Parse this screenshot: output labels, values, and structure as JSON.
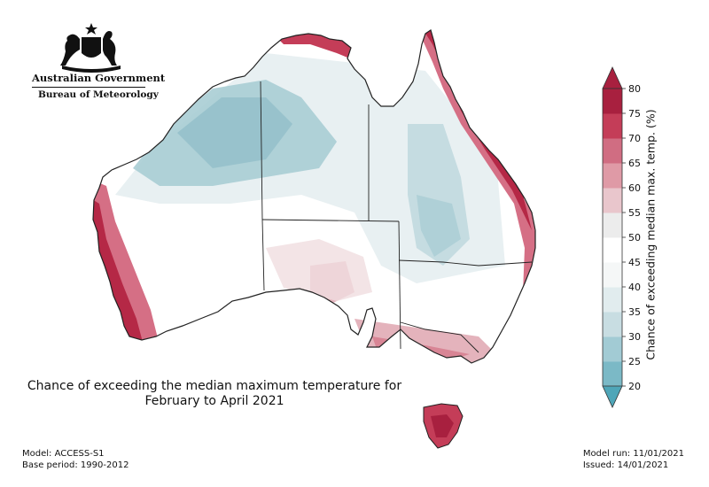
{
  "logo": {
    "icon": "coat-of-arms-icon",
    "org": "Australian Government",
    "department": "Bureau of Meteorology"
  },
  "map": {
    "region": "Australia",
    "title_line1": "Chance of exceeding the median maximum temperature for",
    "title_line2": "February to April 2021",
    "colors": {
      "very_low": "#4fa6b8",
      "low": "#a9cdd4",
      "slightly_low": "#dbe8ec",
      "neutral": "#ffffff",
      "slightly_high": "#ebd3d7",
      "high": "#df9aa6",
      "very_high": "#c43d58",
      "extreme": "#a8203f"
    }
  },
  "colorbar": {
    "label": "Chance of exceeding median max. temp. (%)",
    "ticks": [
      "80",
      "75",
      "70",
      "65",
      "60",
      "55",
      "50",
      "45",
      "40",
      "35",
      "30",
      "25",
      "20"
    ],
    "colors": [
      "#4fa6b8",
      "#7bb9c6",
      "#a2cbd4",
      "#c8dde2",
      "#e1ecee",
      "#f5f7f7",
      "#ffffff",
      "#ececec",
      "#e9c6cc",
      "#df9aa6",
      "#d06d82",
      "#c43d58",
      "#a8203f"
    ]
  },
  "footer": {
    "model": "Model: ACCESS-S1",
    "base_period": "Base period: 1990-2012",
    "model_run": "Model run: 11/01/2021",
    "issued": "Issued: 14/01/2021"
  }
}
